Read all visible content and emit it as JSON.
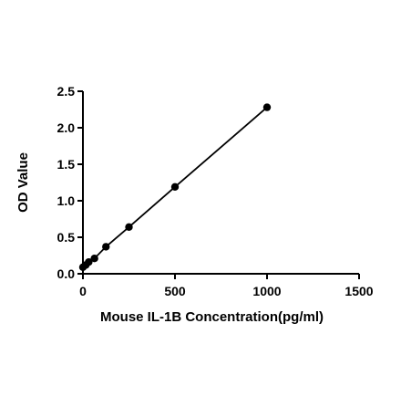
{
  "chart_data": {
    "type": "scatter",
    "title": "",
    "xlabel": "Mouse IL-1B Concentration(pg/ml)",
    "ylabel": "OD Value",
    "xlim": [
      0,
      1500
    ],
    "ylim": [
      0,
      2.5
    ],
    "x_ticks": [
      0,
      500,
      1000,
      1500
    ],
    "x_tick_labels": [
      "0",
      "500",
      "1000",
      "1500"
    ],
    "y_ticks": [
      0,
      0.5,
      1.0,
      1.5,
      2.0,
      2.5
    ],
    "y_tick_labels": [
      "0.0",
      "0.5",
      "1.0",
      "1.5",
      "2.0",
      "2.5"
    ],
    "grid": false,
    "legend": "none",
    "series": [
      {
        "x": [
          0,
          15.6,
          31.25,
          62.5,
          125,
          250,
          500,
          1000
        ],
        "y": [
          0.09,
          0.12,
          0.16,
          0.21,
          0.37,
          0.64,
          1.19,
          2.28
        ],
        "marker": "circle",
        "fit_line": "linear",
        "color": "#000000"
      }
    ]
  }
}
